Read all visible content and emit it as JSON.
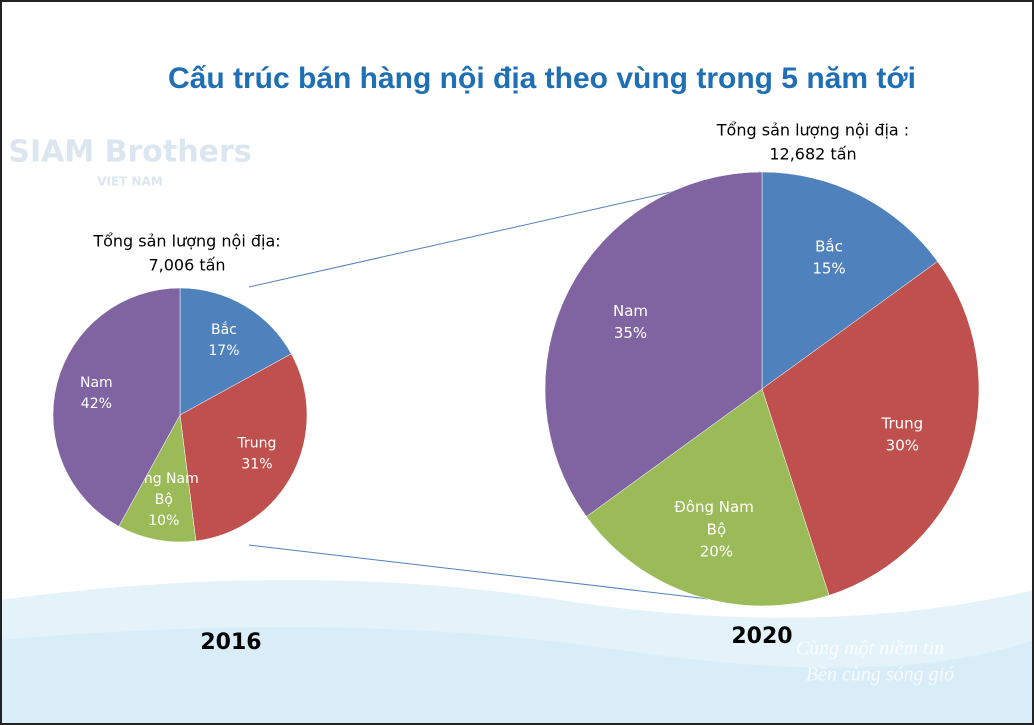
{
  "title": "Cấu trúc bán hàng nội địa theo vùng trong 5 năm tới",
  "logo": {
    "name": "SIAM Brothers",
    "country": "VIET NAM"
  },
  "slogan": [
    "Cùng một niềm tin",
    "Bền cùng sóng gió"
  ],
  "chart_data": [
    {
      "type": "pie",
      "title": "2016",
      "annotations": [
        "Tổng sản lượng nội địa:",
        "7,006 tấn"
      ],
      "categories": [
        "Bắc",
        "Trung",
        "Đông Nam Bộ",
        "Nam"
      ],
      "values": [
        17,
        31,
        10,
        42
      ],
      "value_labels": [
        "17%",
        "31%",
        "10%",
        "42%"
      ],
      "colors": [
        "#4f81bd",
        "#c0504d",
        "#9bbb59",
        "#8064a2"
      ]
    },
    {
      "type": "pie",
      "title": "2020",
      "annotations": [
        "Tổng sản lượng nội địa :",
        "12,682 tấn"
      ],
      "categories": [
        "Bắc",
        "Trung",
        "Đông Nam Bộ",
        "Nam"
      ],
      "values": [
        15,
        30,
        20,
        35
      ],
      "value_labels": [
        "15%",
        "30%",
        "20%",
        "35%"
      ],
      "colors": [
        "#4f81bd",
        "#c0504d",
        "#9bbb59",
        "#8064a2"
      ]
    }
  ]
}
